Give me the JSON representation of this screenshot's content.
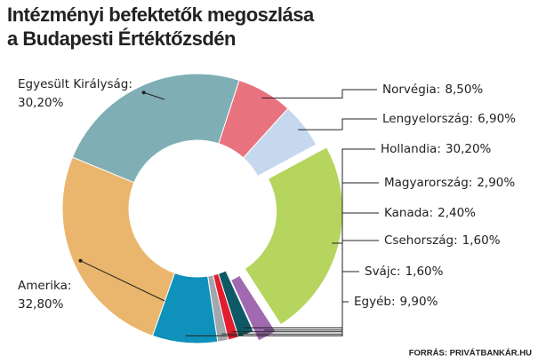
{
  "chart_data": {
    "type": "donut",
    "title": [
      "Intézményi befektetők megoszlása",
      "a Budapesti Értéktőzsdén"
    ],
    "categories": [
      "Norvégia:",
      "Lengyelország:",
      "Hollandia:",
      "Magyarország:",
      "Kanada:",
      "Csehország:",
      "Svájc:",
      "Egyéb:",
      "Amerika:",
      "Egyesült Királyság:"
    ],
    "values": [
      8.5,
      6.9,
      30.2,
      2.9,
      2.4,
      1.6,
      1.6,
      9.9,
      32.8,
      30.2
    ],
    "value_labels": [
      "8,50%",
      "6,90%",
      "30,20%",
      "2,90%",
      "2,40%",
      "1,60%",
      "1,60%",
      "9,90%",
      "32,80%",
      "30,20%"
    ],
    "colors": [
      "#e8737f",
      "#c5d8ee",
      "#b5d55e",
      "#a069b0",
      "#0d5a66",
      "#e31d2e",
      "#a0a8ad",
      "#0e91bb",
      "#eab56c",
      "#7fafb5"
    ],
    "source": "FORRÁS: PRIVÁTBANKÁR.HU"
  }
}
